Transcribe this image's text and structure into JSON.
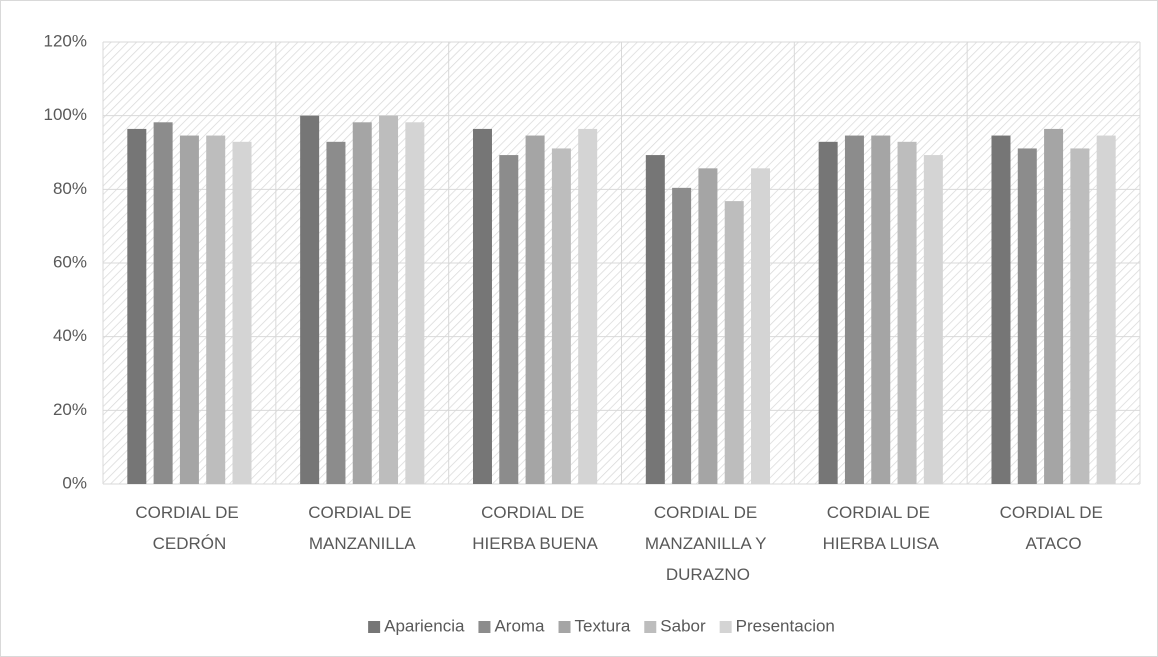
{
  "chart_data": {
    "type": "bar",
    "categories": [
      "CORDIAL DE CEDRÓN",
      "CORDIAL DE MANZANILLA",
      "CORDIAL DE HIERBA BUENA",
      "CORDIAL DE MANZANILLA Y DURAZNO",
      "CORDIAL DE HIERBA LUISA",
      "CORDIAL DE ATACO"
    ],
    "series": [
      {
        "name": "Apariencia",
        "color": "#767676",
        "values": [
          96.4,
          100,
          96.4,
          89.3,
          92.9,
          94.6
        ]
      },
      {
        "name": "Aroma",
        "color": "#8c8c8c",
        "values": [
          98.2,
          92.9,
          89.3,
          80.4,
          94.6,
          91.1
        ]
      },
      {
        "name": "Textura",
        "color": "#a5a5a5",
        "values": [
          94.6,
          98.2,
          94.6,
          85.7,
          94.6,
          96.4
        ]
      },
      {
        "name": "Sabor",
        "color": "#bdbdbd",
        "values": [
          94.6,
          100,
          91.1,
          76.8,
          92.9,
          91.1
        ]
      },
      {
        "name": "Presentacion",
        "color": "#d4d4d4",
        "values": [
          92.9,
          98.2,
          96.4,
          85.7,
          89.3,
          94.6
        ]
      }
    ],
    "ylim": [
      0,
      120
    ],
    "yticks": [
      {
        "value": 0,
        "label": "0%"
      },
      {
        "value": 20,
        "label": "20%"
      },
      {
        "value": 40,
        "label": "40%"
      },
      {
        "value": 60,
        "label": "60%"
      },
      {
        "value": 80,
        "label": "80%"
      },
      {
        "value": 100,
        "label": "100%"
      },
      {
        "value": 120,
        "label": "120%"
      }
    ],
    "grid": true,
    "legend": "bottom"
  }
}
